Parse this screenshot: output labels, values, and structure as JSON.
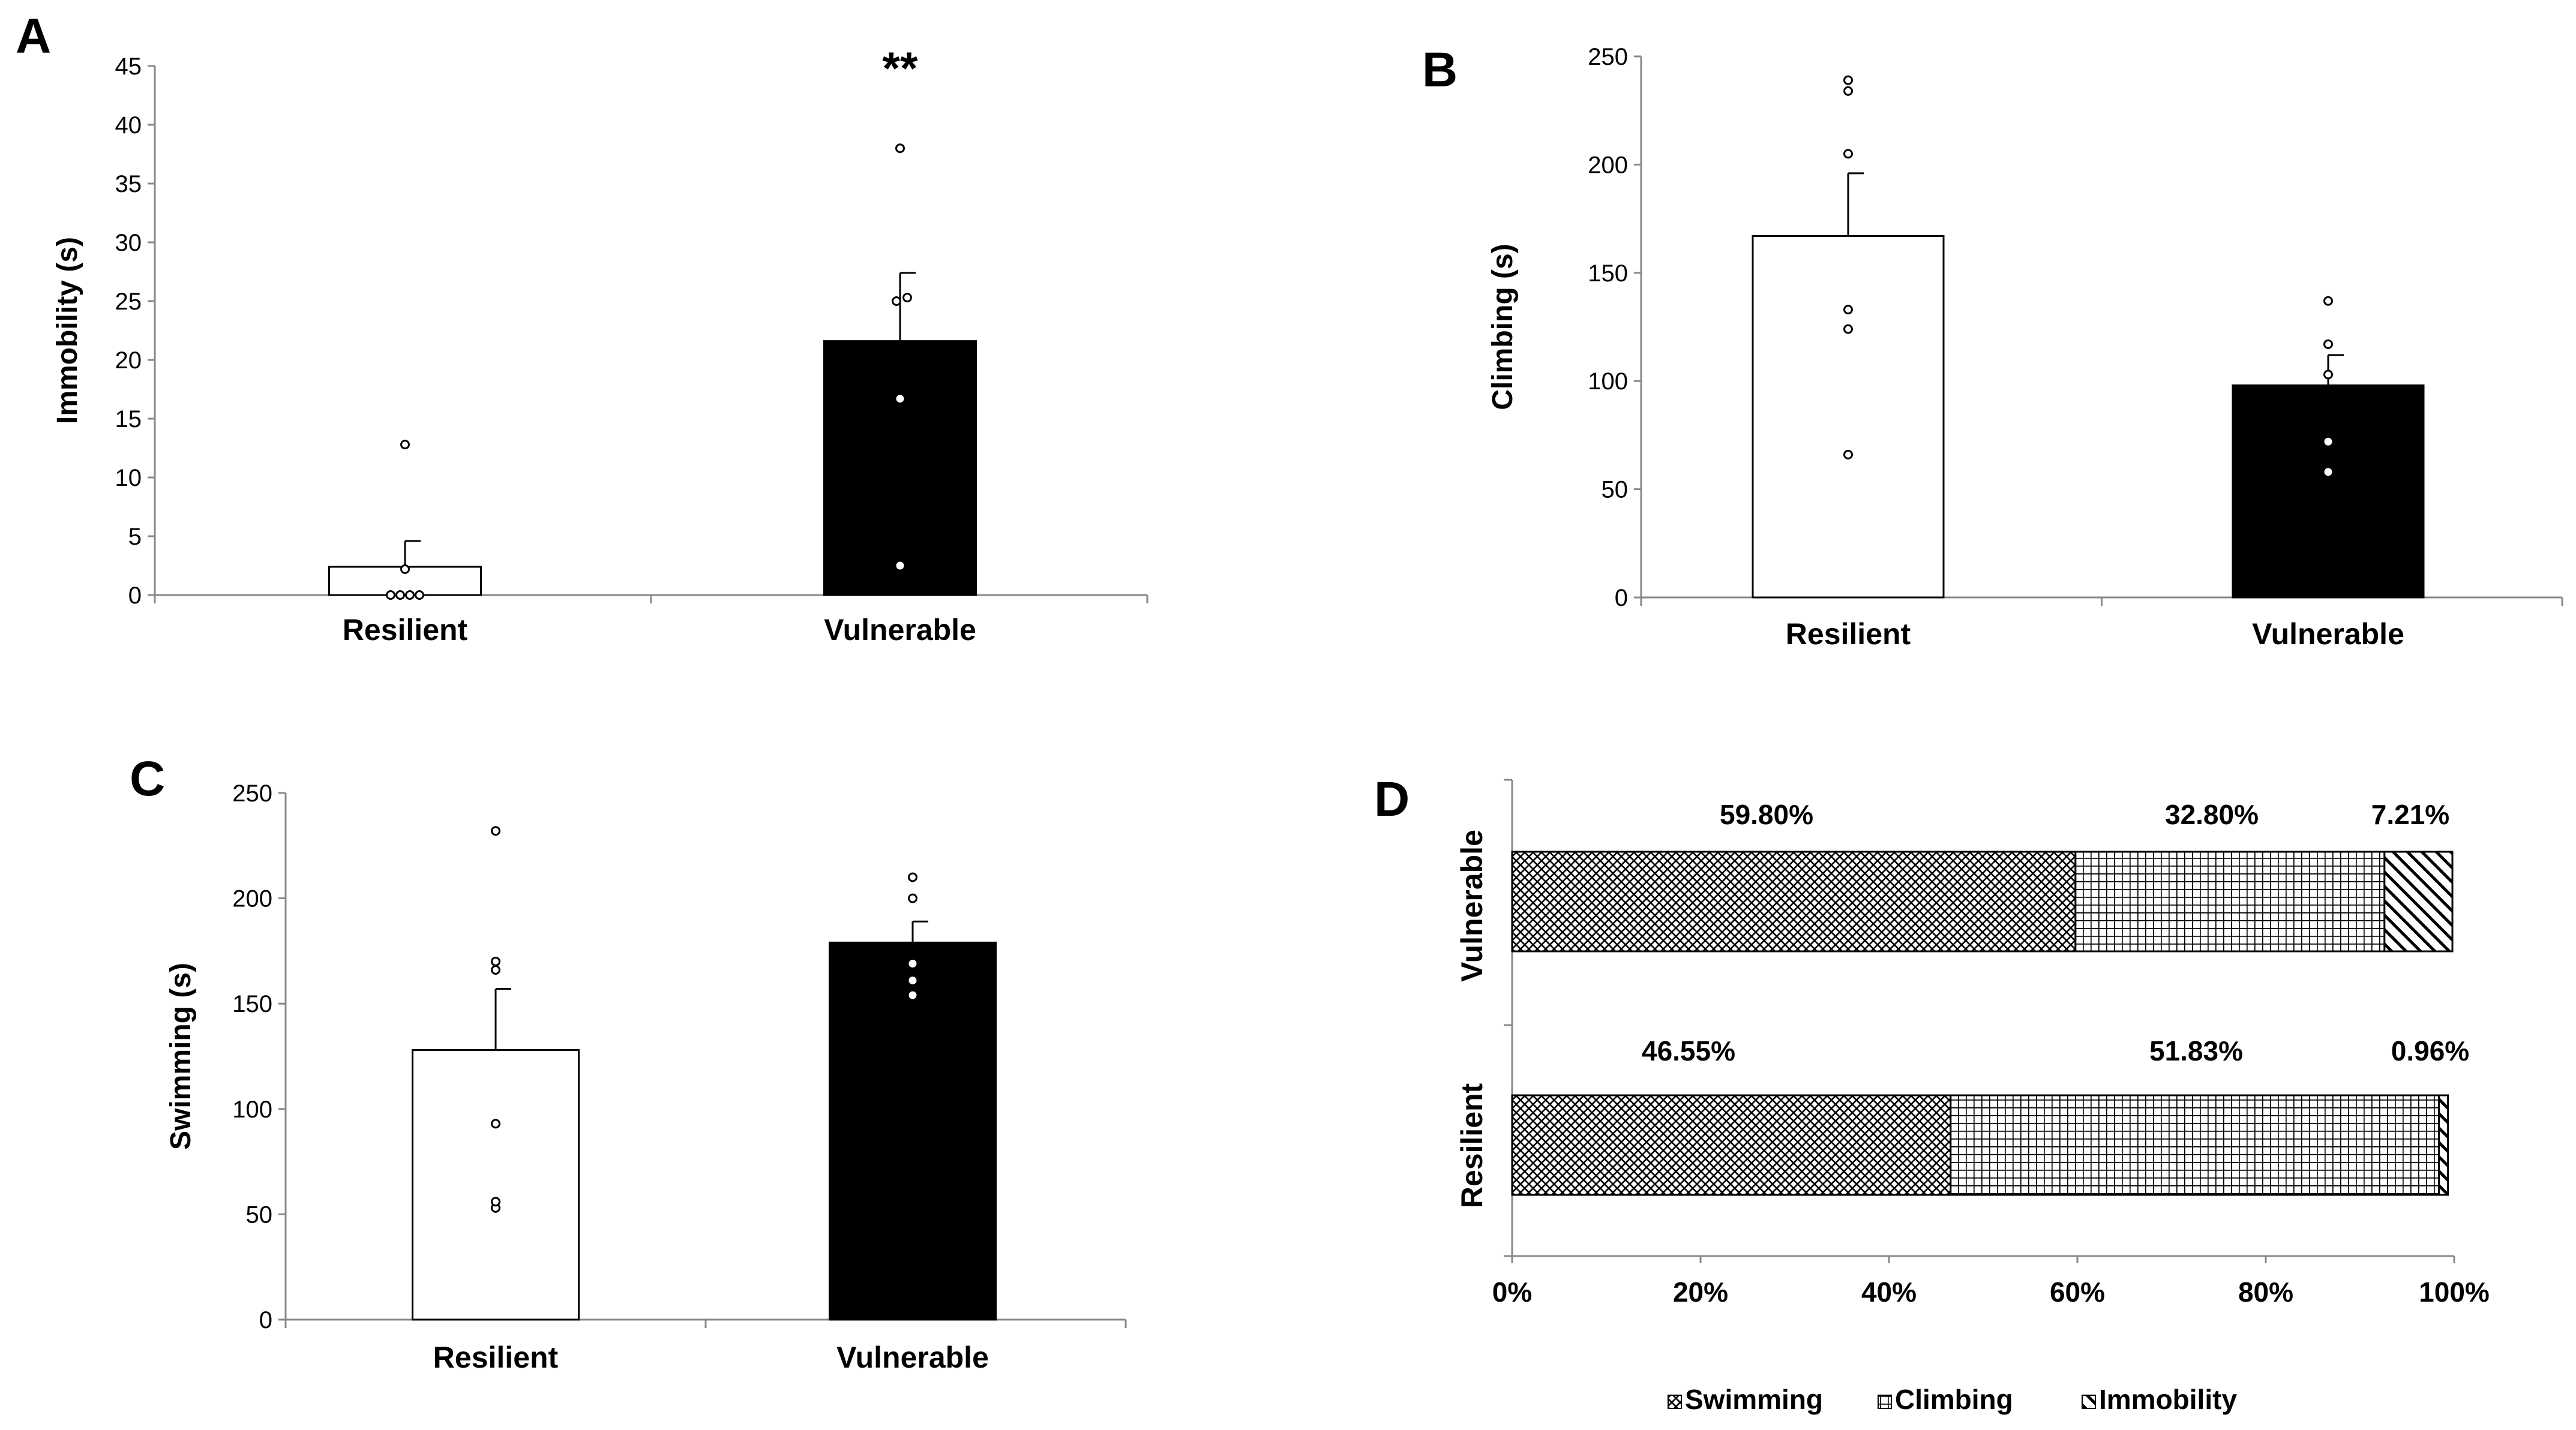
{
  "chart_data": [
    {
      "panel": "A",
      "type": "bar",
      "categories": [
        "Resilient",
        "Vulnerable"
      ],
      "values": [
        2.4,
        21.6
      ],
      "errors": [
        2.2,
        5.8
      ],
      "bar_colors": [
        "#ffffff",
        "#000000"
      ],
      "points": [
        [
          0,
          0,
          0,
          0,
          2.2,
          12.8
        ],
        [
          2.5,
          16.7,
          25.0,
          25.3,
          38.0
        ]
      ],
      "ylabel": "Immobility (s)",
      "ylim": [
        0,
        45
      ],
      "yticks": [
        0,
        5,
        10,
        15,
        20,
        25,
        30,
        35,
        40,
        45
      ],
      "annotation": "**"
    },
    {
      "panel": "B",
      "type": "bar",
      "categories": [
        "Resilient",
        "Vulnerable"
      ],
      "values": [
        167,
        98
      ],
      "errors": [
        29,
        14
      ],
      "bar_colors": [
        "#ffffff",
        "#000000"
      ],
      "points": [
        [
          66,
          124,
          133,
          205,
          234,
          239
        ],
        [
          58,
          72,
          103,
          117,
          137
        ]
      ],
      "ylabel": "Climbing (s)",
      "ylim": [
        0,
        250
      ],
      "yticks": [
        0,
        50,
        100,
        150,
        200,
        250
      ]
    },
    {
      "panel": "C",
      "type": "bar",
      "categories": [
        "Resilient",
        "Vulnerable"
      ],
      "values": [
        128,
        179
      ],
      "errors": [
        29,
        10
      ],
      "bar_colors": [
        "#ffffff",
        "#000000"
      ],
      "points": [
        [
          53,
          56,
          93,
          166,
          170,
          232
        ],
        [
          154,
          161,
          169,
          200,
          210
        ]
      ],
      "ylabel": "Swimming (s)",
      "ylim": [
        0,
        250
      ],
      "yticks": [
        0,
        50,
        100,
        150,
        200,
        250
      ]
    },
    {
      "panel": "D",
      "type": "stacked-bar-horizontal",
      "categories": [
        "Vulnerable",
        "Resilient"
      ],
      "series": [
        {
          "name": "Swimming",
          "values": [
            59.8,
            46.55
          ],
          "labels": [
            "59.80%",
            "46.55%"
          ]
        },
        {
          "name": "Climbing",
          "values": [
            32.8,
            51.83
          ],
          "labels": [
            "32.80%",
            "51.83%"
          ]
        },
        {
          "name": "Immobility",
          "values": [
            7.21,
            0.96
          ],
          "labels": [
            "7.21%",
            "0.96%"
          ]
        }
      ],
      "xlim": [
        0,
        100
      ],
      "xticks": [
        "0%",
        "20%",
        "40%",
        "60%",
        "80%",
        "100%"
      ],
      "legend": "bottom"
    }
  ]
}
